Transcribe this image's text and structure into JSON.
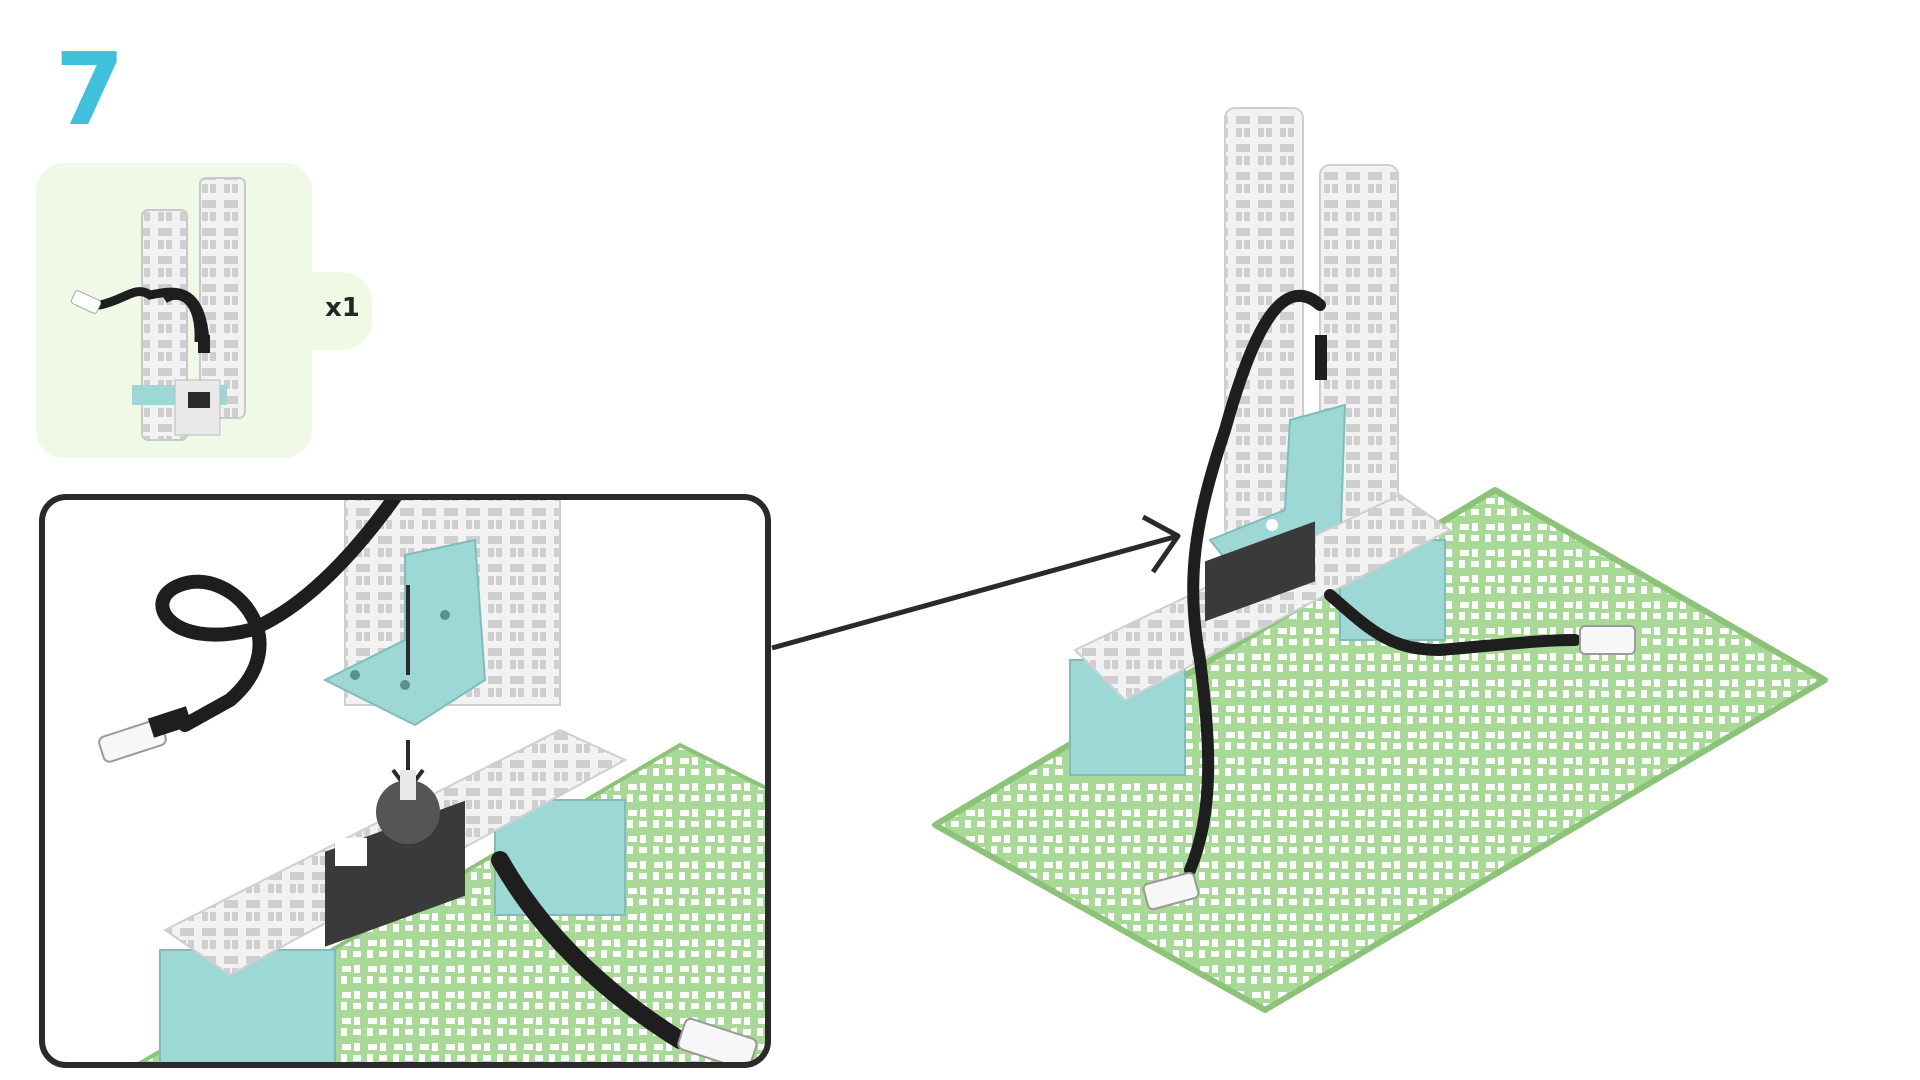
{
  "step": {
    "number": "7"
  },
  "parts": {
    "quantity": "x1"
  },
  "colors": {
    "accent": "#3fc1dc",
    "plate_green": "#a8d996",
    "plate_green_dark": "#8cc378",
    "brace_teal": "#9ed8d6",
    "frame_white": "#eeeeee",
    "cable_black": "#1e1e1e",
    "parts_bg": "#f0f9e6"
  },
  "icons": [
    "parts-thumbnail",
    "zoom-detail",
    "servo-motor",
    "cable-connector",
    "corner-bracket",
    "pointer-arrow"
  ]
}
